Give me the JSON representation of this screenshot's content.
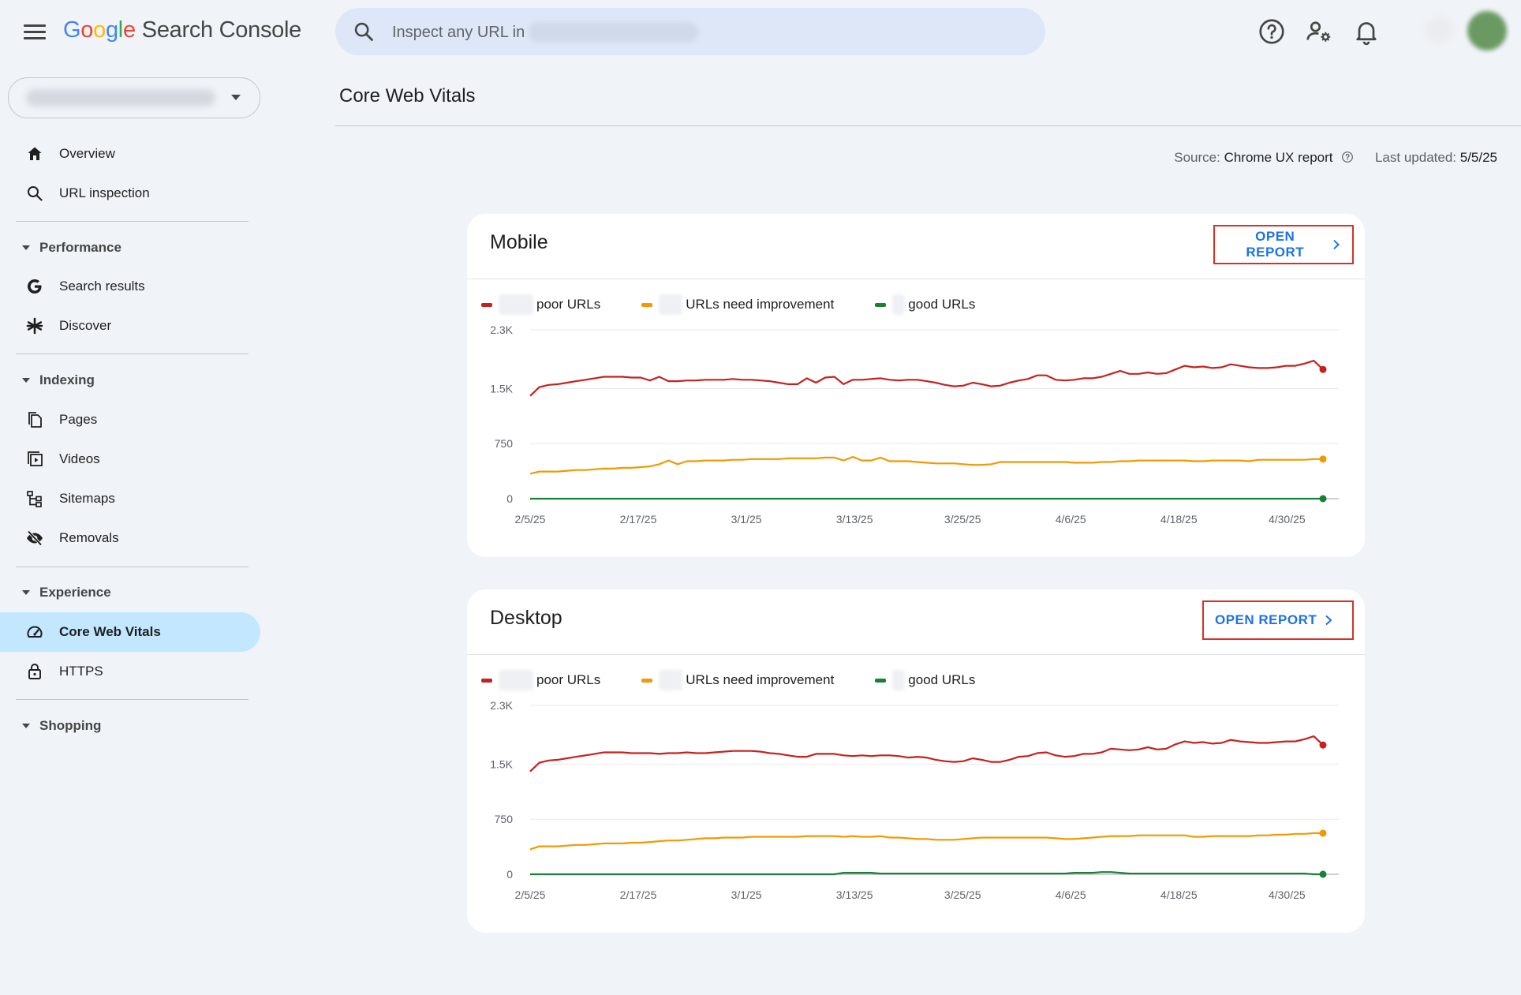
{
  "header": {
    "logo_google": [
      "G",
      "o",
      "o",
      "g",
      "l",
      "e"
    ],
    "logo_product": "Search Console",
    "search_placeholder": "Inspect any URL in",
    "icons": [
      "menu-icon",
      "search-icon",
      "help-icon",
      "manage-users-icon",
      "notifications-icon"
    ]
  },
  "sidebar": {
    "top_items": [
      {
        "label": "Overview",
        "icon": "home-icon"
      },
      {
        "label": "URL inspection",
        "icon": "search-icon"
      }
    ],
    "sections": [
      {
        "label": "Performance",
        "items": [
          {
            "label": "Search results",
            "icon": "google-g-icon"
          },
          {
            "label": "Discover",
            "icon": "asterisk-icon"
          }
        ]
      },
      {
        "label": "Indexing",
        "items": [
          {
            "label": "Pages",
            "icon": "pages-icon"
          },
          {
            "label": "Videos",
            "icon": "videos-icon"
          },
          {
            "label": "Sitemaps",
            "icon": "sitemaps-icon"
          },
          {
            "label": "Removals",
            "icon": "removals-icon"
          }
        ]
      },
      {
        "label": "Experience",
        "items": [
          {
            "label": "Core Web Vitals",
            "icon": "gauge-icon",
            "active": true
          },
          {
            "label": "HTTPS",
            "icon": "lock-icon"
          }
        ]
      },
      {
        "label": "Shopping",
        "items": []
      }
    ]
  },
  "main": {
    "title": "Core Web Vitals",
    "source_label": "Source:",
    "source_value": "Chrome UX report",
    "last_updated_label": "Last updated:",
    "last_updated_value": "5/5/25"
  },
  "cards": [
    {
      "title": "Mobile",
      "open_report_label": "OPEN REPORT"
    },
    {
      "title": "Desktop",
      "open_report_label": "OPEN REPORT"
    }
  ],
  "legend": {
    "poor": "poor URLs",
    "needs_improvement": "URLs need improvement",
    "good": "good URLs"
  },
  "colors": {
    "poor": "#c5221f",
    "needs_improvement": "#f29900",
    "good": "#188038",
    "accent": "#1a73e8",
    "active_nav": "#c2e7ff"
  },
  "chart_data": [
    {
      "type": "line",
      "title": "",
      "x_ticks": [
        "2/5/25",
        "2/17/25",
        "3/1/25",
        "3/13/25",
        "3/25/25",
        "4/6/25",
        "4/18/25",
        "4/30/25"
      ],
      "y_ticks": [
        "0",
        "750",
        "1.5K",
        "2.3K"
      ],
      "ylim": [
        0,
        2300
      ],
      "x_range": [
        "2/5/25",
        "5/4/25"
      ],
      "series": [
        {
          "name": "poor URLs",
          "key": "poor",
          "values": [
            1400,
            1520,
            1550,
            1560,
            1580,
            1600,
            1620,
            1640,
            1660,
            1660,
            1660,
            1650,
            1650,
            1610,
            1660,
            1600,
            1600,
            1610,
            1610,
            1620,
            1620,
            1620,
            1630,
            1620,
            1620,
            1610,
            1600,
            1580,
            1560,
            1560,
            1640,
            1580,
            1650,
            1660,
            1560,
            1620,
            1620,
            1630,
            1640,
            1620,
            1610,
            1620,
            1620,
            1600,
            1580,
            1550,
            1530,
            1540,
            1580,
            1560,
            1530,
            1540,
            1580,
            1610,
            1630,
            1680,
            1680,
            1620,
            1610,
            1620,
            1640,
            1640,
            1660,
            1700,
            1740,
            1700,
            1700,
            1720,
            1700,
            1710,
            1760,
            1810,
            1790,
            1800,
            1780,
            1790,
            1830,
            1810,
            1790,
            1780,
            1780,
            1790,
            1810,
            1810,
            1840,
            1880,
            1760
          ]
        },
        {
          "name": "URLs need improvement",
          "key": "needs_improvement",
          "values": [
            340,
            370,
            370,
            370,
            380,
            390,
            390,
            400,
            410,
            410,
            420,
            420,
            430,
            440,
            470,
            520,
            470,
            510,
            510,
            520,
            520,
            520,
            530,
            530,
            540,
            540,
            540,
            540,
            550,
            550,
            550,
            550,
            560,
            560,
            520,
            570,
            520,
            520,
            560,
            510,
            510,
            510,
            500,
            490,
            480,
            480,
            480,
            470,
            460,
            460,
            470,
            500,
            500,
            500,
            500,
            500,
            500,
            500,
            500,
            490,
            490,
            490,
            500,
            500,
            510,
            510,
            520,
            520,
            520,
            520,
            520,
            520,
            510,
            510,
            520,
            520,
            520,
            520,
            510,
            530,
            530,
            530,
            530,
            530,
            530,
            540,
            540
          ]
        },
        {
          "name": "good URLs",
          "key": "good",
          "values": [
            0,
            0,
            0,
            0,
            0,
            0,
            0,
            0,
            0,
            0,
            0,
            0,
            0,
            0,
            0,
            0,
            0,
            0,
            0,
            0,
            0,
            0,
            0,
            0,
            0,
            0,
            0,
            0,
            0,
            0,
            0,
            0,
            0,
            0,
            0,
            0,
            0,
            0,
            0,
            0,
            0,
            0,
            0,
            0,
            0,
            0,
            0,
            0,
            0,
            0,
            0,
            0,
            0,
            0,
            0,
            0,
            0,
            0,
            0,
            0,
            0,
            0,
            0,
            0,
            0,
            0,
            0,
            0,
            0,
            0,
            0,
            0,
            0,
            0,
            0,
            0,
            0,
            0,
            0,
            0,
            0,
            0,
            0,
            0,
            0,
            0,
            0
          ]
        }
      ]
    },
    {
      "type": "line",
      "title": "",
      "x_ticks": [
        "2/5/25",
        "2/17/25",
        "3/1/25",
        "3/13/25",
        "3/25/25",
        "4/6/25",
        "4/18/25",
        "4/30/25"
      ],
      "y_ticks": [
        "0",
        "750",
        "1.5K",
        "2.3K"
      ],
      "ylim": [
        0,
        2300
      ],
      "x_range": [
        "2/5/25",
        "5/4/25"
      ],
      "series": [
        {
          "name": "poor URLs",
          "key": "poor",
          "values": [
            1400,
            1520,
            1550,
            1560,
            1580,
            1600,
            1620,
            1640,
            1660,
            1660,
            1660,
            1650,
            1650,
            1650,
            1640,
            1650,
            1650,
            1660,
            1650,
            1650,
            1660,
            1670,
            1680,
            1680,
            1680,
            1670,
            1650,
            1640,
            1620,
            1600,
            1600,
            1640,
            1640,
            1640,
            1620,
            1610,
            1620,
            1610,
            1620,
            1620,
            1610,
            1590,
            1600,
            1590,
            1560,
            1540,
            1530,
            1540,
            1580,
            1560,
            1530,
            1530,
            1560,
            1600,
            1610,
            1650,
            1660,
            1620,
            1600,
            1610,
            1640,
            1640,
            1660,
            1710,
            1700,
            1690,
            1700,
            1730,
            1700,
            1710,
            1770,
            1810,
            1790,
            1800,
            1780,
            1790,
            1830,
            1810,
            1800,
            1790,
            1790,
            1800,
            1810,
            1810,
            1840,
            1880,
            1760
          ]
        },
        {
          "name": "URLs need improvement",
          "key": "needs_improvement",
          "values": [
            340,
            380,
            380,
            380,
            390,
            400,
            400,
            410,
            420,
            420,
            420,
            430,
            430,
            440,
            450,
            460,
            460,
            470,
            480,
            490,
            490,
            500,
            500,
            500,
            510,
            510,
            510,
            510,
            510,
            510,
            520,
            520,
            520,
            520,
            510,
            520,
            510,
            510,
            520,
            500,
            500,
            490,
            480,
            480,
            470,
            470,
            470,
            480,
            490,
            500,
            500,
            500,
            500,
            500,
            500,
            500,
            500,
            490,
            480,
            480,
            490,
            500,
            510,
            520,
            520,
            520,
            530,
            530,
            530,
            530,
            530,
            530,
            510,
            510,
            520,
            520,
            520,
            520,
            520,
            530,
            530,
            540,
            540,
            550,
            550,
            560,
            560
          ]
        },
        {
          "name": "good URLs",
          "key": "good",
          "values": [
            0,
            0,
            0,
            0,
            0,
            0,
            0,
            0,
            0,
            0,
            0,
            0,
            0,
            0,
            0,
            0,
            0,
            0,
            0,
            0,
            0,
            0,
            0,
            0,
            0,
            0,
            0,
            0,
            0,
            0,
            0,
            0,
            0,
            0,
            20,
            20,
            20,
            20,
            10,
            10,
            10,
            10,
            10,
            10,
            10,
            10,
            10,
            10,
            10,
            10,
            10,
            10,
            10,
            10,
            10,
            10,
            10,
            10,
            10,
            20,
            20,
            20,
            30,
            30,
            20,
            10,
            10,
            10,
            10,
            10,
            10,
            10,
            10,
            10,
            10,
            10,
            10,
            10,
            10,
            10,
            10,
            10,
            10,
            10,
            10,
            0,
            0
          ]
        }
      ]
    }
  ]
}
